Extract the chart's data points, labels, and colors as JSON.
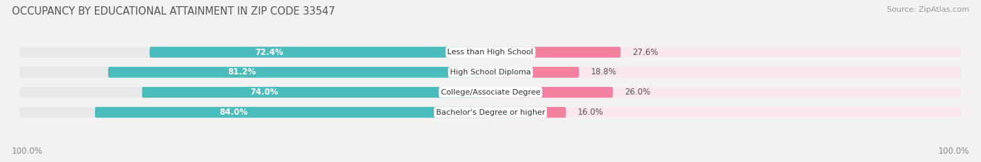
{
  "title": "OCCUPANCY BY EDUCATIONAL ATTAINMENT IN ZIP CODE 33547",
  "source": "Source: ZipAtlas.com",
  "categories": [
    "Less than High School",
    "High School Diploma",
    "College/Associate Degree",
    "Bachelor's Degree or higher"
  ],
  "owner_pct": [
    72.4,
    81.2,
    74.0,
    84.0
  ],
  "renter_pct": [
    27.6,
    18.8,
    26.0,
    16.0
  ],
  "owner_color": "#4BBCBC",
  "renter_color": "#F2809E",
  "owner_bg_color": "#E8E8E8",
  "renter_bg_color": "#FAE8EE",
  "row_bg_color": "#F4F4F4",
  "bg_color": "#F2F2F2",
  "title_fontsize": 10.5,
  "label_fontsize": 8.5,
  "tick_fontsize": 8.5,
  "source_fontsize": 8,
  "legend_fontsize": 8.5,
  "axis_label_left": "100.0%",
  "axis_label_right": "100.0%"
}
